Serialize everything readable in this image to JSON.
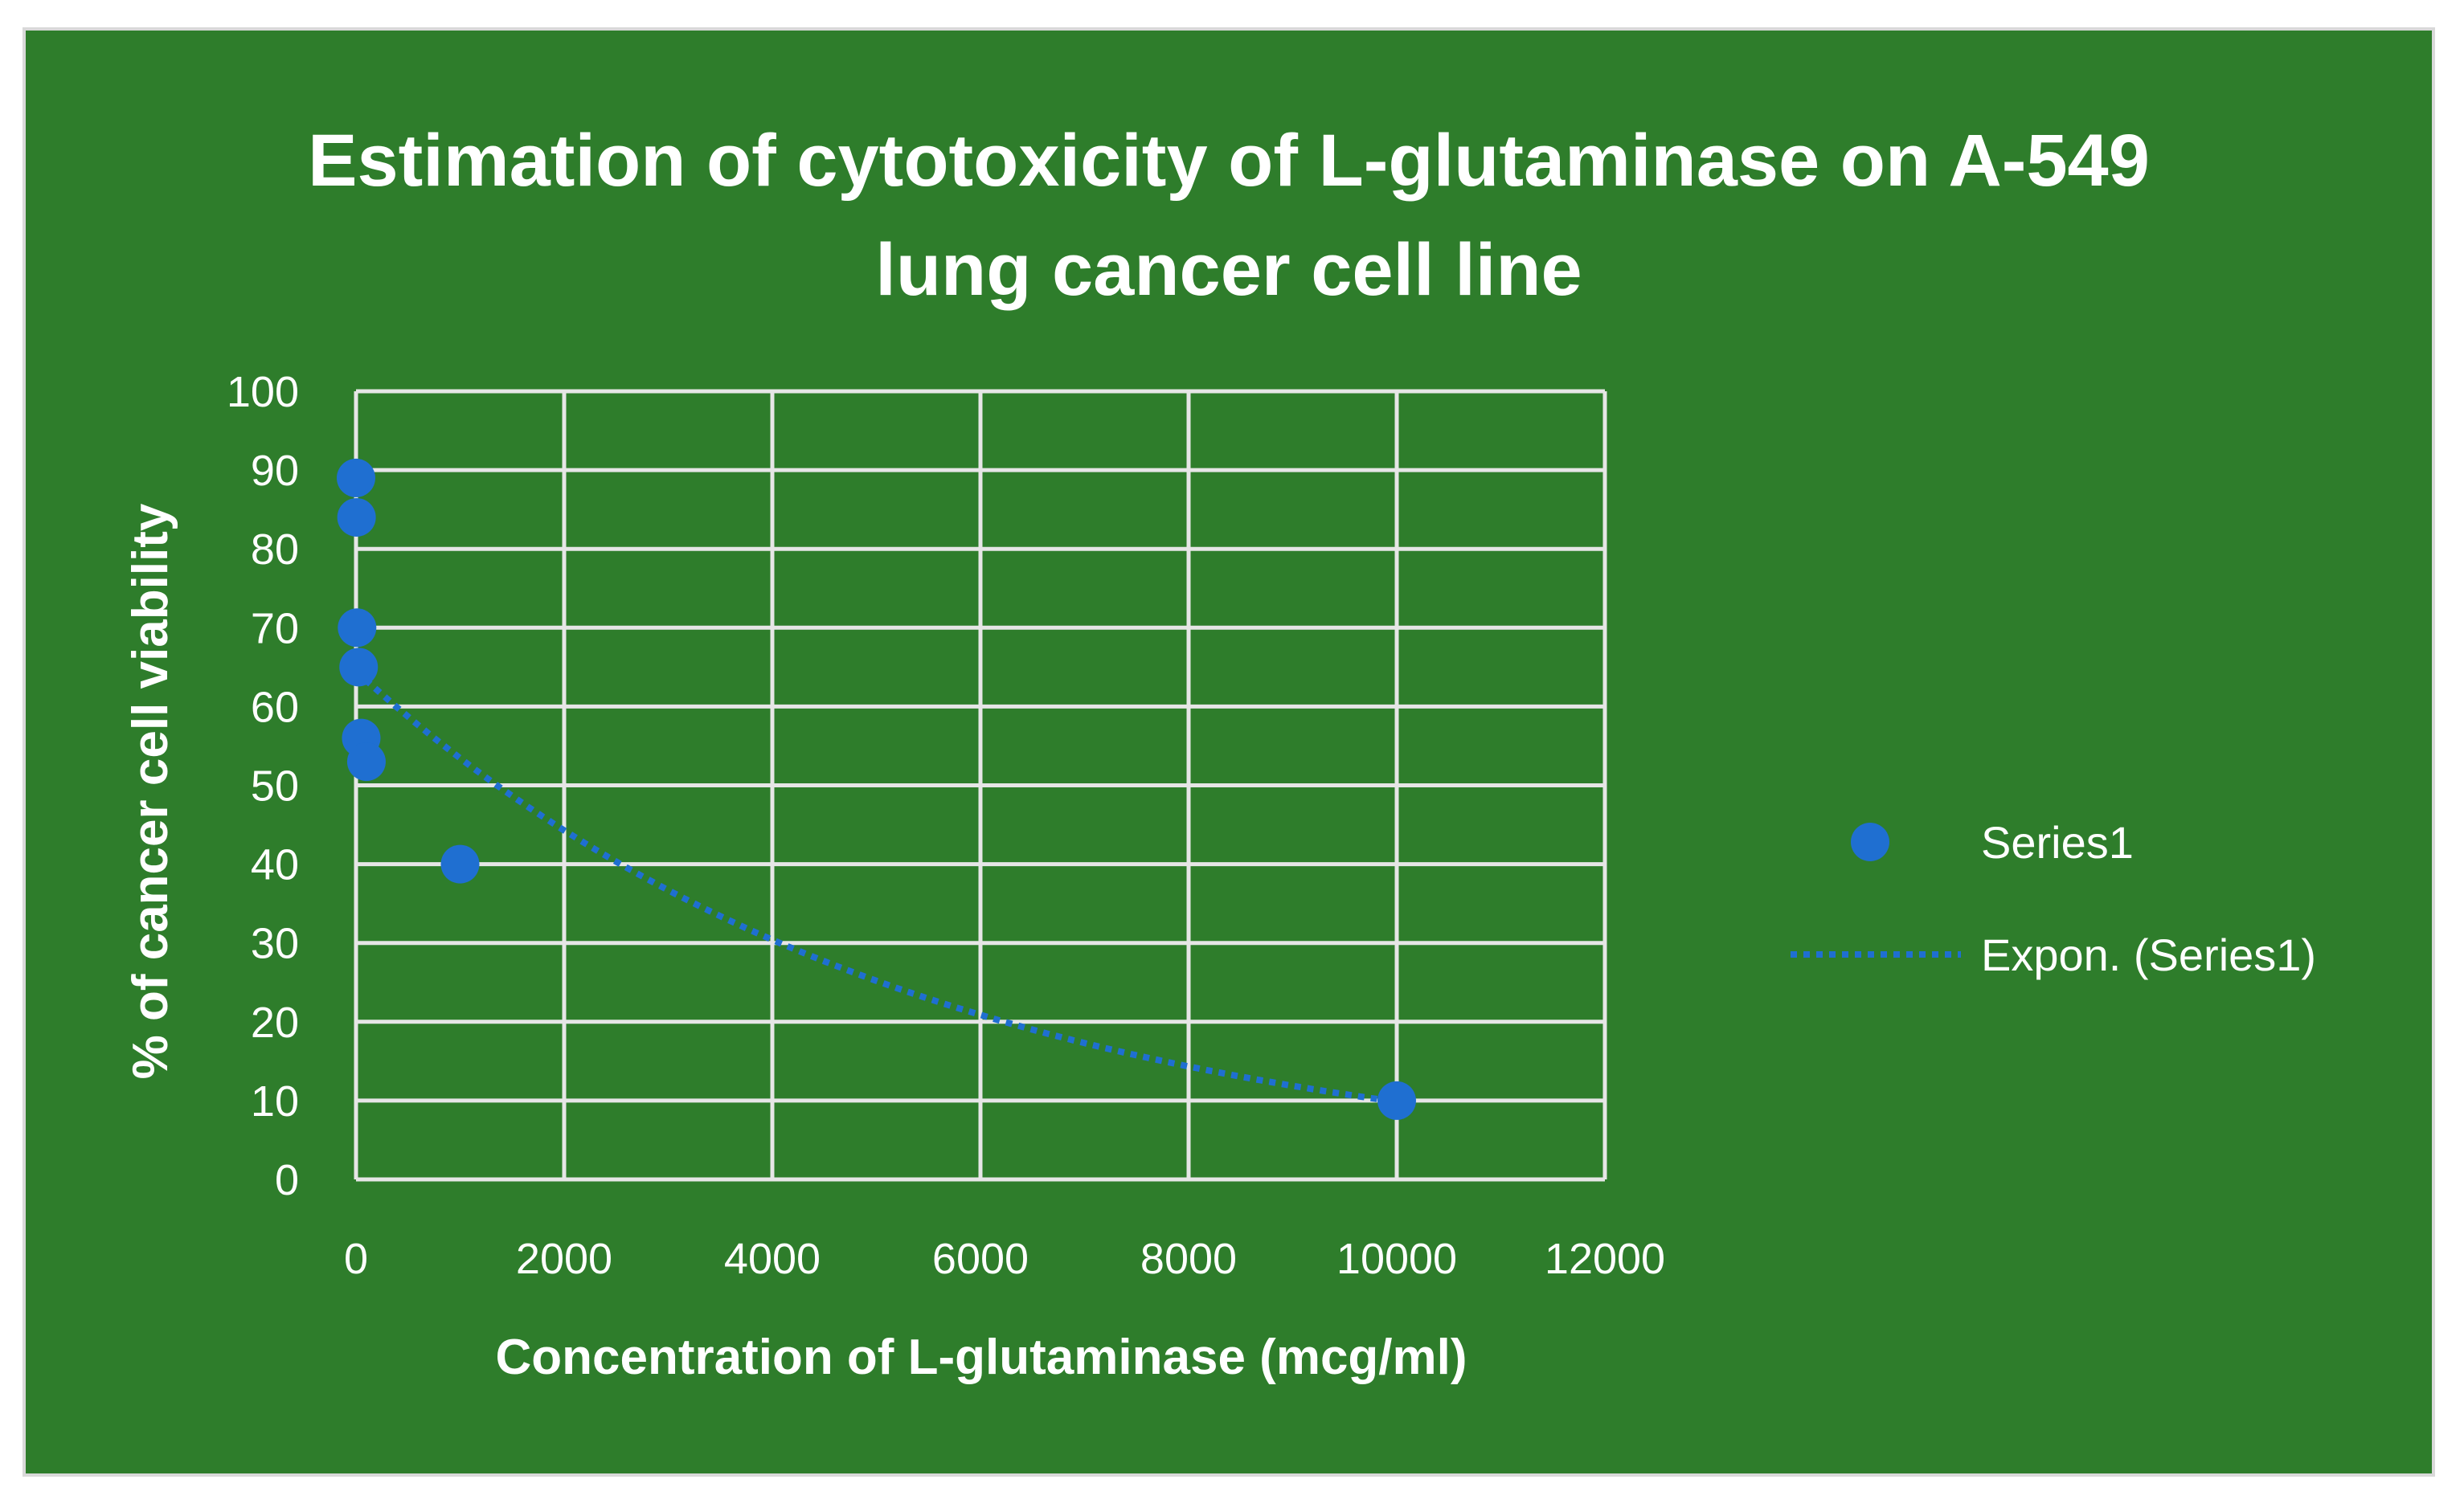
{
  "chart_data": {
    "type": "scatter",
    "title": "Estimation of cytotoxicity of L-glutaminase on A-549 lung cancer cell line",
    "xlabel": "Concentration of L-glutaminase (mcg/ml)",
    "ylabel": "% of cancer cell viability",
    "xlim": [
      0,
      12000
    ],
    "ylim": [
      0,
      100
    ],
    "x_ticks": [
      0,
      2000,
      4000,
      6000,
      8000,
      10000,
      12000
    ],
    "y_ticks": [
      0,
      10,
      20,
      30,
      40,
      50,
      60,
      70,
      80,
      90,
      100
    ],
    "grid": true,
    "legend_position": "right",
    "series": [
      {
        "name": "Series1",
        "type": "scatter",
        "color": "#1f6fd1",
        "x": [
          0,
          5,
          10,
          25,
          50,
          100,
          1000,
          10000
        ],
        "y": [
          89,
          84,
          70,
          65,
          56,
          53,
          40,
          10
        ]
      },
      {
        "name": "Expon. (Series1)",
        "type": "trendline-exponential",
        "color": "#1f6fd1",
        "style": "dotted",
        "x_range": [
          0,
          10000
        ],
        "a": 64.5,
        "b": -0.000188
      }
    ]
  },
  "colors": {
    "background": "#2e7d2b",
    "frame_border": "#d9d9d9",
    "grid": "#e6e6e6",
    "text": "#ffffff",
    "marker": "#1f6fd1"
  }
}
